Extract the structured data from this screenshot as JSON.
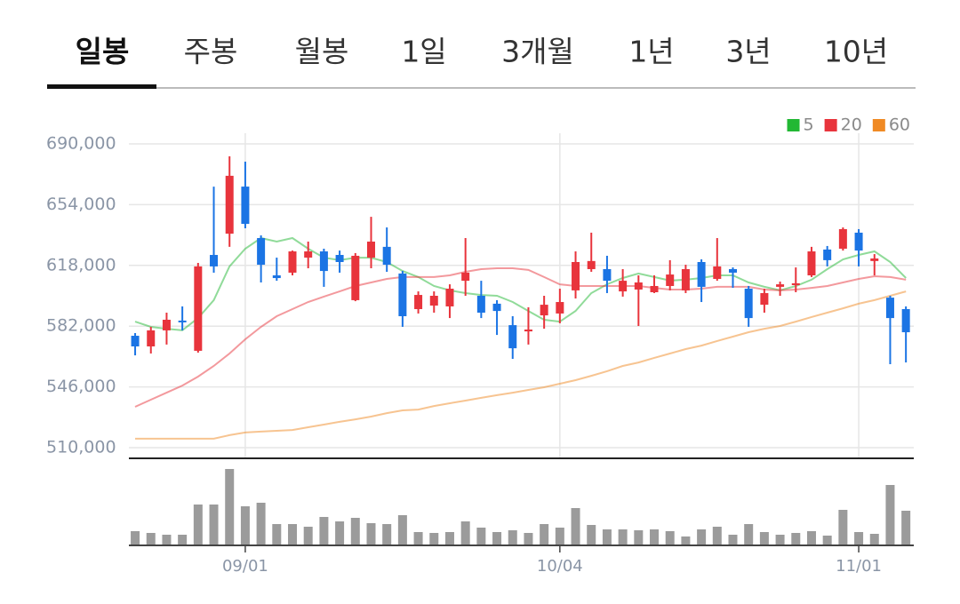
{
  "tabs": [
    "일봉",
    "주봉",
    "월봉",
    "1일",
    "3개월",
    "1년",
    "3년",
    "10년"
  ],
  "active_tab": 0,
  "chart_data": {
    "type": "candlestick",
    "categories": [
      null,
      null,
      null,
      null,
      null,
      null,
      null,
      "09/01",
      null,
      null,
      null,
      null,
      null,
      null,
      null,
      null,
      null,
      null,
      null,
      null,
      null,
      null,
      null,
      null,
      null,
      null,
      null,
      "10/04",
      null,
      null,
      null,
      null,
      null,
      null,
      null,
      null,
      null,
      null,
      null,
      null,
      null,
      null,
      null,
      null,
      null,
      null,
      "11/01",
      null,
      null,
      null
    ],
    "open": [
      576300,
      570000,
      579500,
      585300,
      567400,
      624200,
      636800,
      664700,
      634200,
      612100,
      613700,
      622600,
      626300,
      624200,
      597400,
      622600,
      629000,
      613200,
      592100,
      594200,
      593700,
      608900,
      600000,
      595300,
      582600,
      578900,
      588400,
      589500,
      603200,
      615800,
      615800,
      602600,
      603700,
      602100,
      605800,
      603200,
      620000,
      610000,
      615800,
      604200,
      594700,
      605300,
      606300,
      612100,
      627400,
      627900,
      637400,
      620600,
      598900,
      592100
    ],
    "high": [
      577900,
      581600,
      590000,
      593700,
      619500,
      664700,
      682600,
      679500,
      635800,
      622600,
      626800,
      632100,
      627900,
      626800,
      625300,
      646800,
      640500,
      614700,
      602600,
      602600,
      606800,
      634200,
      608900,
      597400,
      587900,
      593200,
      600000,
      604200,
      626300,
      637400,
      623700,
      615800,
      612100,
      612100,
      621100,
      618400,
      621600,
      634200,
      616800,
      605800,
      604200,
      608400,
      616800,
      629000,
      629500,
      640500,
      639500,
      624700,
      600000,
      593700
    ],
    "low": [
      564700,
      565800,
      571100,
      579500,
      566300,
      613700,
      629000,
      640000,
      607900,
      608900,
      612100,
      616300,
      605300,
      613700,
      596800,
      616300,
      614200,
      581600,
      589500,
      590000,
      586800,
      600000,
      586800,
      576800,
      562600,
      571100,
      580500,
      583700,
      598400,
      614200,
      601600,
      599500,
      582100,
      601600,
      603200,
      601600,
      596300,
      608900,
      604700,
      581600,
      590000,
      600000,
      602100,
      611100,
      617400,
      626800,
      617400,
      612100,
      559500,
      560500
    ],
    "close": [
      570000,
      579500,
      585800,
      584700,
      617400,
      617400,
      671100,
      642600,
      618400,
      610500,
      626300,
      626300,
      614700,
      620000,
      623700,
      632100,
      618400,
      587900,
      600500,
      600000,
      604200,
      613700,
      590000,
      591000,
      568900,
      580000,
      594700,
      596300,
      620000,
      620600,
      608900,
      608900,
      607900,
      605800,
      612600,
      615800,
      605300,
      617400,
      613700,
      586800,
      601600,
      606800,
      607400,
      626300,
      621100,
      639500,
      626800,
      622100,
      586800,
      578400
    ],
    "volume": [
      15,
      13,
      11,
      11,
      45,
      45,
      85,
      43,
      47,
      23,
      23,
      20,
      31,
      26,
      30,
      24,
      23,
      33,
      14,
      13,
      14,
      26,
      19,
      14,
      16,
      13,
      23,
      19,
      41,
      22,
      17,
      17,
      16,
      17,
      15,
      9,
      17,
      20,
      11,
      23,
      14,
      11,
      13,
      15,
      10,
      39,
      14,
      12,
      67,
      38
    ],
    "up_color": "#e8343c",
    "down_color": "#1b74e4",
    "volume_color": "#9b9b9b",
    "series": [
      {
        "name": "5",
        "color": "#22b834",
        "values": [
          584700,
          581600,
          580500,
          579500,
          586800,
          597400,
          617400,
          627900,
          634200,
          632100,
          634200,
          627900,
          622600,
          621100,
          622600,
          622600,
          620000,
          614700,
          611100,
          605800,
          603200,
          601600,
          600500,
          600000,
          596300,
          591000,
          585800,
          584700,
          591000,
          601600,
          606800,
          610500,
          613200,
          611100,
          609000,
          609500,
          610500,
          612100,
          612100,
          607900,
          605300,
          603200,
          605800,
          609500,
          615800,
          621600,
          624200,
          626300,
          620000,
          610500
        ]
      },
      {
        "name": "20",
        "color": "#e8343c",
        "values": [
          534200,
          538400,
          542600,
          546800,
          552100,
          558400,
          565800,
          574200,
          581600,
          587900,
          592100,
          596300,
          599500,
          602600,
          605800,
          607900,
          610000,
          611100,
          611100,
          611100,
          612100,
          614200,
          615800,
          616300,
          616300,
          615300,
          611100,
          606800,
          605800,
          605800,
          605800,
          605800,
          605800,
          604700,
          603700,
          603700,
          604200,
          605300,
          605300,
          605300,
          603700,
          603200,
          603700,
          604700,
          605800,
          607900,
          610000,
          611600,
          611100,
          609500
        ]
      },
      {
        "name": "60",
        "color": "#f08a24",
        "values": [
          515300,
          515300,
          515300,
          515300,
          515300,
          515300,
          517400,
          519000,
          519500,
          520000,
          520500,
          522100,
          523700,
          525300,
          526800,
          528400,
          530500,
          532100,
          532600,
          534700,
          536300,
          537900,
          539500,
          541100,
          542600,
          544200,
          545800,
          547900,
          550000,
          552600,
          555300,
          558400,
          560500,
          563200,
          565800,
          568400,
          570500,
          573200,
          575800,
          578400,
          580500,
          582100,
          584700,
          587400,
          590000,
          592600,
          595300,
          597400,
          600000,
          602600
        ]
      }
    ],
    "ylim": [
      510000,
      690000
    ],
    "yticks": [
      {
        "value": 510000,
        "label": "510,000"
      },
      {
        "value": 546000,
        "label": "546,000"
      },
      {
        "value": 582000,
        "label": "582,000"
      },
      {
        "value": 618000,
        "label": "618,000"
      },
      {
        "value": 654000,
        "label": "654,000"
      },
      {
        "value": 690000,
        "label": "690,000"
      }
    ],
    "grid": true,
    "legend": "top-right"
  }
}
